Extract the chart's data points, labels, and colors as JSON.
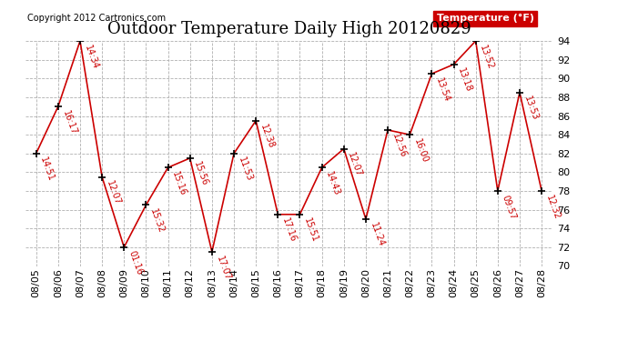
{
  "title": "Outdoor Temperature Daily High 20120829",
  "copyright": "Copyright 2012 Cartronics.com",
  "legend_label": "Temperature (°F)",
  "dates": [
    "08/05",
    "08/06",
    "08/07",
    "08/08",
    "08/09",
    "08/10",
    "08/11",
    "08/12",
    "08/13",
    "08/14",
    "08/15",
    "08/16",
    "08/17",
    "08/18",
    "08/19",
    "08/20",
    "08/21",
    "08/22",
    "08/23",
    "08/24",
    "08/25",
    "08/26",
    "08/27",
    "08/28"
  ],
  "temps": [
    82.0,
    87.0,
    94.0,
    79.5,
    72.0,
    76.5,
    80.5,
    81.5,
    71.5,
    82.0,
    85.5,
    75.5,
    75.5,
    80.5,
    82.5,
    75.0,
    84.5,
    84.0,
    90.5,
    91.5,
    94.0,
    78.0,
    88.5,
    78.0
  ],
  "labels": [
    "14:51",
    "16:17",
    "14:34",
    "12:07",
    "01:16",
    "15:32",
    "15:16",
    "15:56",
    "17:07",
    "11:53",
    "12:38",
    "17:16",
    "15:51",
    "14:43",
    "12:07",
    "11:24",
    "12:56",
    "16:00",
    "13:54",
    "13:18",
    "13:52",
    "09:57",
    "13:53",
    "12:32"
  ],
  "ylim_min": 70.0,
  "ylim_max": 94.0,
  "ytick_step": 2,
  "line_color": "#cc0000",
  "marker_color": "#000000",
  "bg_color": "#ffffff",
  "grid_color": "#b0b0b0",
  "title_fontsize": 13,
  "annotation_fontsize": 7,
  "tick_fontsize": 8,
  "copyright_fontsize": 7,
  "legend_bg": "#cc0000",
  "legend_fg": "#ffffff",
  "legend_fontsize": 8
}
